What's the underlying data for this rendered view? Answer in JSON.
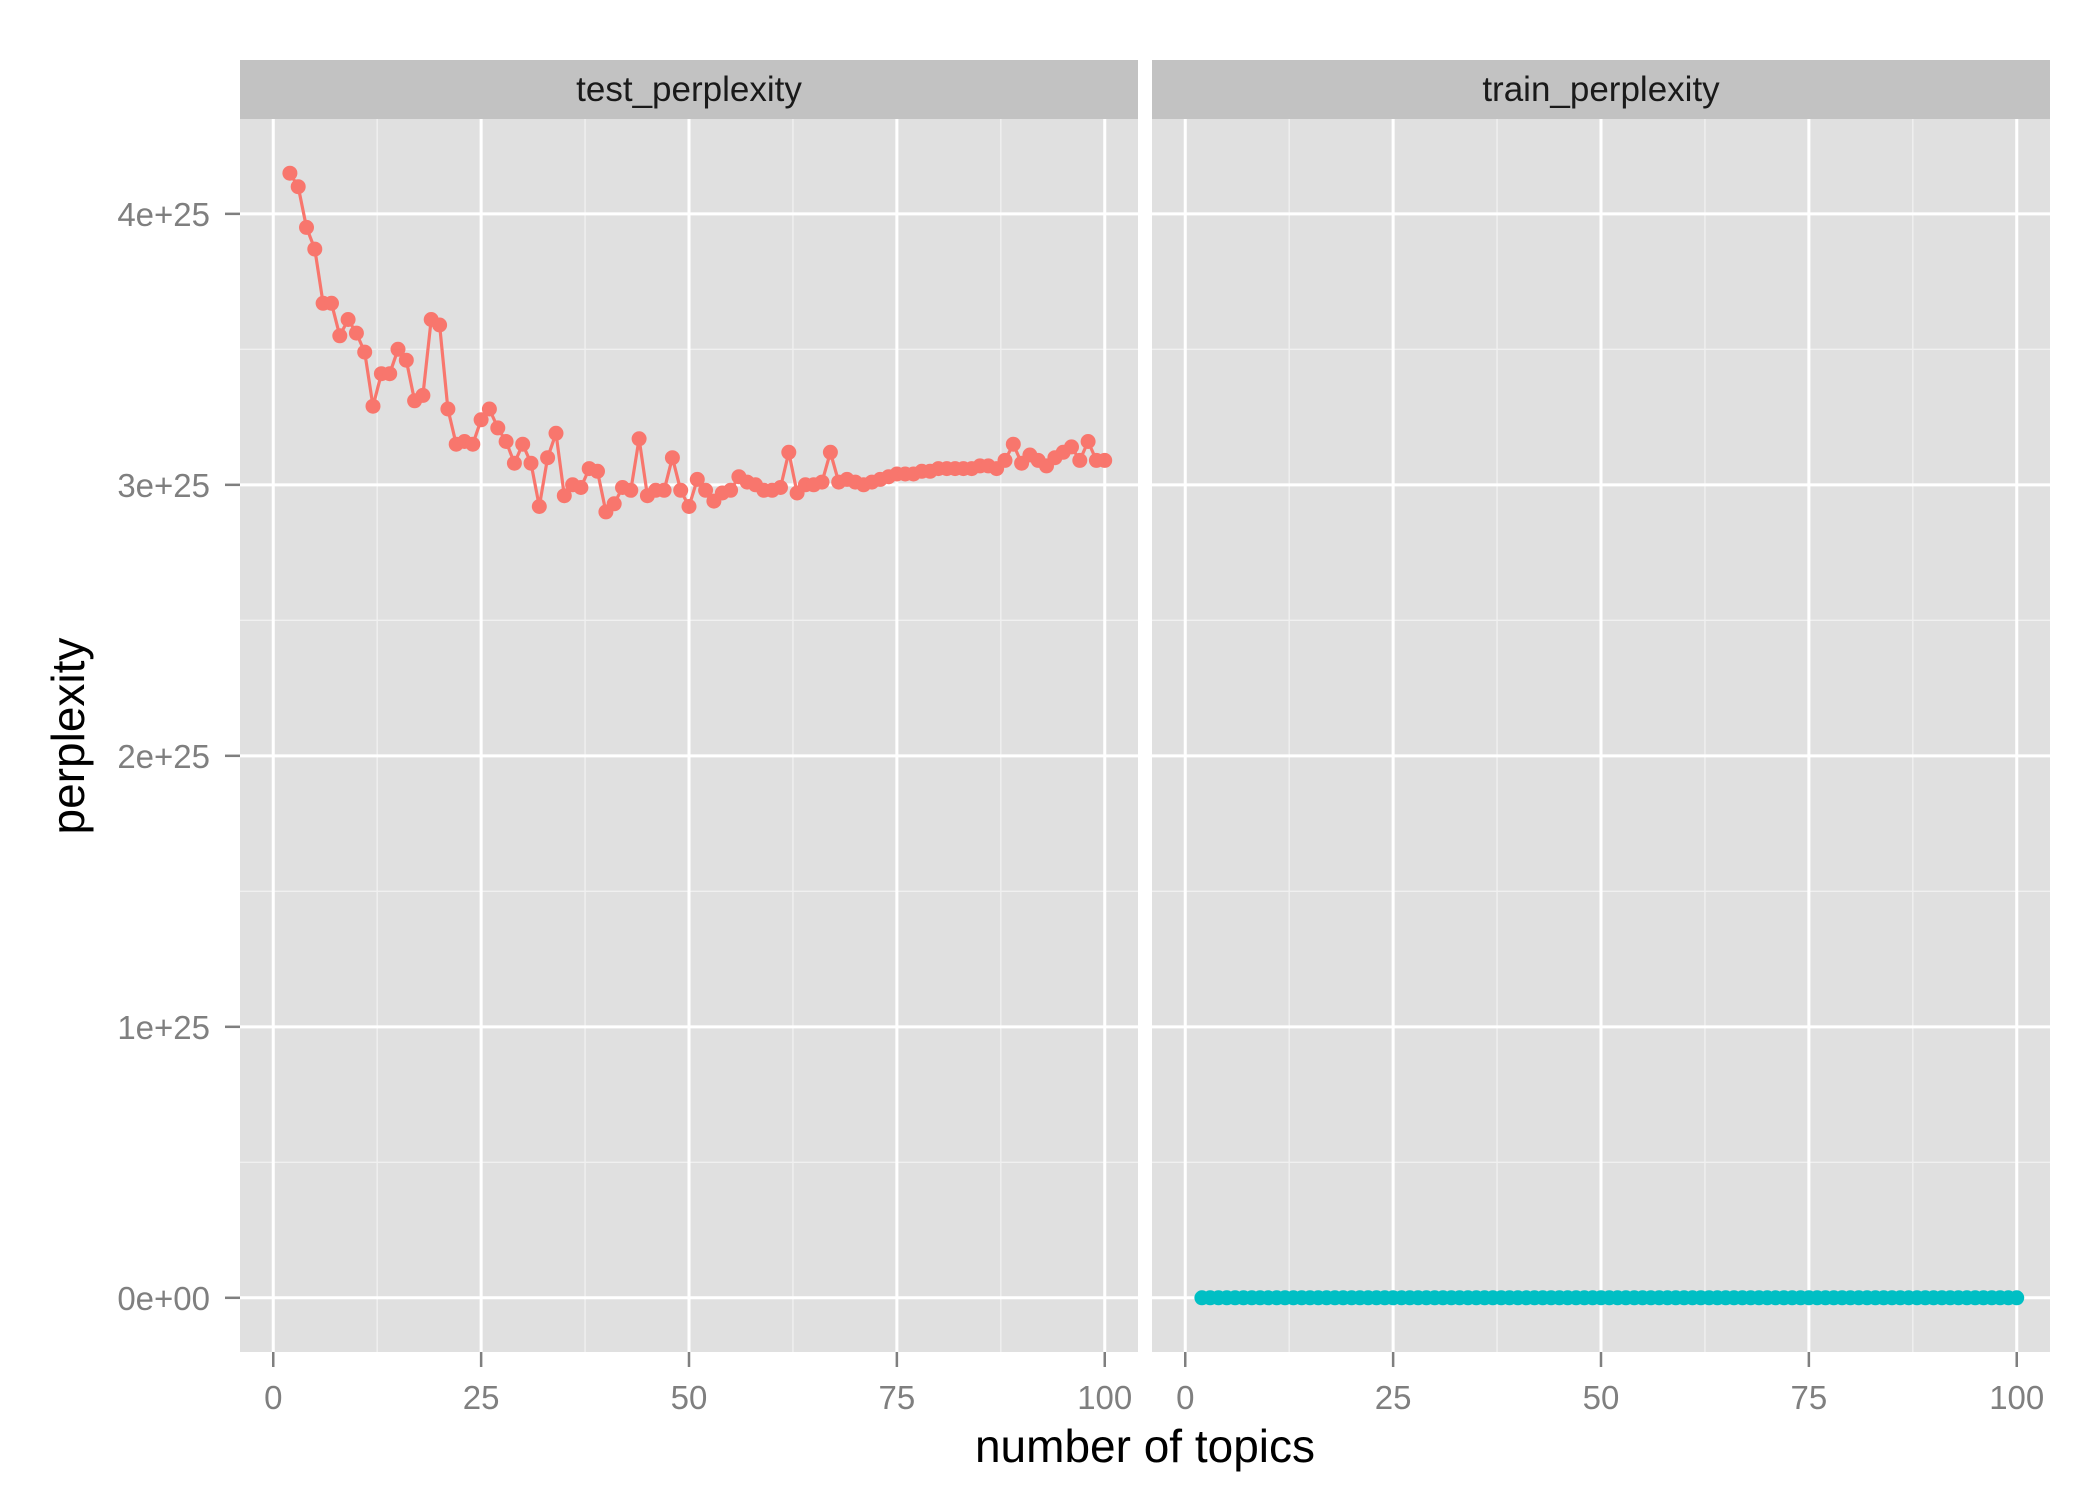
{
  "chart_data": {
    "type": "line",
    "xlabel": "number of topics",
    "ylabel": "perplexity",
    "xlim": [
      -4,
      104
    ],
    "ylim": [
      -2e+24,
      4.35e+25
    ],
    "x_ticks": [
      0,
      25,
      50,
      75,
      100
    ],
    "x_tick_labels": [
      "0",
      "25",
      "50",
      "75",
      "100"
    ],
    "y_ticks": [
      0,
      1e+25,
      2e+25,
      3e+25,
      4e+25
    ],
    "y_tick_labels": [
      "0e+00",
      "1e+25",
      "2e+25",
      "3e+25",
      "4e+25"
    ],
    "grid": true,
    "legend": "none",
    "facets": [
      "test_perplexity",
      "train_perplexity"
    ],
    "series": [
      {
        "name": "test_perplexity",
        "color": "#F8766D",
        "x": [
          2,
          3,
          4,
          5,
          6,
          7,
          8,
          9,
          10,
          11,
          12,
          13,
          14,
          15,
          16,
          17,
          18,
          19,
          20,
          21,
          22,
          23,
          24,
          25,
          26,
          27,
          28,
          29,
          30,
          31,
          32,
          33,
          34,
          35,
          36,
          37,
          38,
          39,
          40,
          41,
          42,
          43,
          44,
          45,
          46,
          47,
          48,
          49,
          50,
          51,
          52,
          53,
          54,
          55,
          56,
          57,
          58,
          59,
          60,
          61,
          62,
          63,
          64,
          65,
          66,
          67,
          68,
          69,
          70,
          71,
          72,
          73,
          74,
          75,
          76,
          77,
          78,
          79,
          80,
          81,
          82,
          83,
          84,
          85,
          86,
          87,
          88,
          89,
          90,
          91,
          92,
          93,
          94,
          95,
          96,
          97,
          98,
          99,
          100
        ],
        "values": [
          4.15e+25,
          4.1e+25,
          3.95e+25,
          3.87e+25,
          3.67e+25,
          3.67e+25,
          3.55e+25,
          3.61e+25,
          3.56e+25,
          3.49e+25,
          3.29e+25,
          3.41e+25,
          3.41e+25,
          3.5e+25,
          3.46e+25,
          3.31e+25,
          3.33e+25,
          3.61e+25,
          3.59e+25,
          3.28e+25,
          3.15e+25,
          3.16e+25,
          3.15e+25,
          3.24e+25,
          3.28e+25,
          3.21e+25,
          3.16e+25,
          3.08e+25,
          3.15e+25,
          3.08e+25,
          2.92e+25,
          3.1e+25,
          3.19e+25,
          2.96e+25,
          3e+25,
          2.99e+25,
          3.06e+25,
          3.05e+25,
          2.9e+25,
          2.93e+25,
          2.99e+25,
          2.98e+25,
          3.17e+25,
          2.96e+25,
          2.98e+25,
          2.98e+25,
          3.1e+25,
          2.98e+25,
          2.92e+25,
          3.02e+25,
          2.98e+25,
          2.94e+25,
          2.97e+25,
          2.98e+25,
          3.03e+25,
          3.01e+25,
          3e+25,
          2.98e+25,
          2.98e+25,
          2.99e+25,
          3.12e+25,
          2.97e+25,
          3e+25,
          3e+25,
          3.01e+25,
          3.12e+25,
          3.01e+25,
          3.02e+25,
          3.01e+25,
          3e+25,
          3.01e+25,
          3.02e+25,
          3.03e+25,
          3.04e+25,
          3.04e+25,
          3.04e+25,
          3.05e+25,
          3.05e+25,
          3.06e+25,
          3.06e+25,
          3.06e+25,
          3.06e+25,
          3.06e+25,
          3.07e+25,
          3.07e+25,
          3.06e+25,
          3.09e+25,
          3.15e+25,
          3.08e+25,
          3.11e+25,
          3.09e+25,
          3.07e+25,
          3.1e+25,
          3.12e+25,
          3.14e+25,
          3.09e+25,
          3.16e+25,
          3.09e+25,
          3.09e+25
        ]
      },
      {
        "name": "train_perplexity",
        "color": "#00BFC4",
        "x": [
          2,
          3,
          4,
          5,
          6,
          7,
          8,
          9,
          10,
          11,
          12,
          13,
          14,
          15,
          16,
          17,
          18,
          19,
          20,
          21,
          22,
          23,
          24,
          25,
          26,
          27,
          28,
          29,
          30,
          31,
          32,
          33,
          34,
          35,
          36,
          37,
          38,
          39,
          40,
          41,
          42,
          43,
          44,
          45,
          46,
          47,
          48,
          49,
          50,
          51,
          52,
          53,
          54,
          55,
          56,
          57,
          58,
          59,
          60,
          61,
          62,
          63,
          64,
          65,
          66,
          67,
          68,
          69,
          70,
          71,
          72,
          73,
          74,
          75,
          76,
          77,
          78,
          79,
          80,
          81,
          82,
          83,
          84,
          85,
          86,
          87,
          88,
          89,
          90,
          91,
          92,
          93,
          94,
          95,
          96,
          97,
          98,
          99,
          100
        ],
        "values": [
          0,
          0,
          0,
          0,
          0,
          0,
          0,
          0,
          0,
          0,
          0,
          0,
          0,
          0,
          0,
          0,
          0,
          0,
          0,
          0,
          0,
          0,
          0,
          0,
          0,
          0,
          0,
          0,
          0,
          0,
          0,
          0,
          0,
          0,
          0,
          0,
          0,
          0,
          0,
          0,
          0,
          0,
          0,
          0,
          0,
          0,
          0,
          0,
          0,
          0,
          0,
          0,
          0,
          0,
          0,
          0,
          0,
          0,
          0,
          0,
          0,
          0,
          0,
          0,
          0,
          0,
          0,
          0,
          0,
          0,
          0,
          0,
          0,
          0,
          0,
          0,
          0,
          0,
          0,
          0,
          0,
          0,
          0,
          0,
          0,
          0,
          0,
          0,
          0,
          0,
          0,
          0,
          0,
          0,
          0,
          0,
          0,
          0,
          0
        ]
      }
    ]
  }
}
